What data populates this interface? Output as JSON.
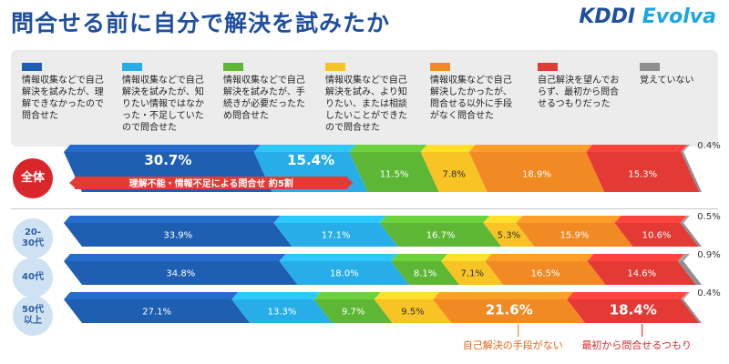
{
  "title": "問合せる前に自分で解決を試みたか",
  "brand": {
    "name_main": "KDDI",
    "name_sub": "Evolva"
  },
  "colors": [
    "#1f5fb2",
    "#27aee8",
    "#5db735",
    "#f7c325",
    "#f28a24",
    "#e43a36",
    "#8f8f8f"
  ],
  "chart_data": {
    "type": "bar",
    "orientation": "horizontal-stacked-3d",
    "title": "問合せる前に自分で解決を試みたか",
    "unit": "%",
    "series": [
      {
        "name": "情報収集などで自己解決を試みたが、理解できなかったので問合せた",
        "color": "#1f5fb2"
      },
      {
        "name": "情報収集などで自己解決を試みたが、知りたい情報ではなかった・不足していたので問合せた",
        "color": "#27aee8"
      },
      {
        "name": "情報収集などで自己解決を試みたが、手続きが必要だったため問合せた",
        "color": "#5db735"
      },
      {
        "name": "情報収集などで自己解決を試み、より知りたい、または相談したいことができたので問合せた",
        "color": "#f7c325"
      },
      {
        "name": "情報収集などで自己解決したかったが、問合せる以外に手段がなく問合せた",
        "color": "#f28a24"
      },
      {
        "name": "自己解決を望んでおらず、最初から問合せるつもりだった",
        "color": "#e43a36"
      },
      {
        "name": "覚えていない",
        "color": "#8f8f8f"
      }
    ],
    "rows": [
      {
        "label": "全体",
        "values": [
          30.7,
          15.4,
          11.5,
          7.8,
          18.9,
          15.3,
          0.4
        ],
        "labels": [
          "30.7%",
          "15.4%",
          "11.5%",
          "7.8%",
          "18.9%",
          "15.3%",
          "0.4%"
        ]
      },
      {
        "label": "20-30代",
        "values": [
          33.9,
          17.1,
          16.7,
          5.3,
          15.9,
          10.6,
          0.5
        ],
        "labels": [
          "33.9%",
          "17.1%",
          "16.7%",
          "5.3%",
          "15.9%",
          "10.6%",
          "0.5%"
        ]
      },
      {
        "label": "40代",
        "values": [
          34.8,
          18.0,
          8.1,
          7.1,
          16.5,
          14.6,
          0.9
        ],
        "labels": [
          "34.8%",
          "18.0%",
          "8.1%",
          "7.1%",
          "16.5%",
          "14.6%",
          "0.9%"
        ]
      },
      {
        "label": "50代以上",
        "values": [
          27.1,
          13.3,
          9.7,
          9.5,
          21.6,
          18.4,
          0.4
        ],
        "labels": [
          "27.1%",
          "13.3%",
          "9.7%",
          "9.5%",
          "21.6%",
          "18.4%",
          "0.4%"
        ]
      }
    ],
    "annotations": {
      "overall_bracket": "理解不能・情報不足による問合せ 約5割",
      "bottom_orange": "自己解決の手段がない",
      "bottom_red": "最初から問合せるつもり"
    }
  },
  "legend": [
    "情報収集などで自己解決を試みたが、理解できなかったので問合せた",
    "情報収集などで自己解決を試みたが、知りたい情報ではなかった・不足していたので問合せた",
    "情報収集などで自己解決を試みたが、手続きが必要だったため問合せた",
    "情報収集などで自己解決を試み、より知りたい、または相談したいことができたので問合せた",
    "情報収集などで自己解決したかったが、問合せる以外に手段がなく問合せた",
    "自己解決を望んでおらず、最初から問合せるつもりだった",
    "覚えていない"
  ],
  "row_labels": [
    "全体",
    "20-\n30代",
    "40代",
    "50代\n以上"
  ]
}
